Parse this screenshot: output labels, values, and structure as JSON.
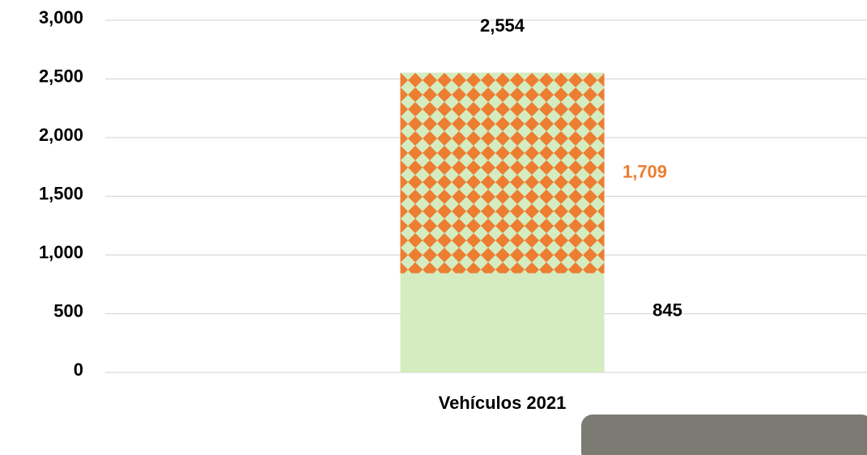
{
  "chart_data": {
    "type": "stacked-bar",
    "categories": [
      "Vehículos 2021"
    ],
    "series": [
      {
        "color": "#d4ecc0",
        "values": [
          845
        ],
        "value_labels": [
          "845"
        ],
        "label_color": "#000000"
      },
      {
        "color": "#ed7d31",
        "values": [
          1709
        ],
        "value_labels": [
          "1,709"
        ],
        "label_color": "#ed7d31"
      }
    ],
    "totals": [
      2554
    ],
    "total_labels": [
      "2,554"
    ],
    "ylim": [
      0,
      3000
    ],
    "yticks": [
      0,
      500,
      {
        "value": 1000,
        "label": "1,000"
      },
      {
        "value": 1500,
        "label": "1,500"
      },
      {
        "value": 2000,
        "label": "2,000"
      },
      {
        "value": 2500,
        "label": "2,500"
      },
      {
        "value": 3000,
        "label": "3,000"
      }
    ],
    "grid": true
  }
}
